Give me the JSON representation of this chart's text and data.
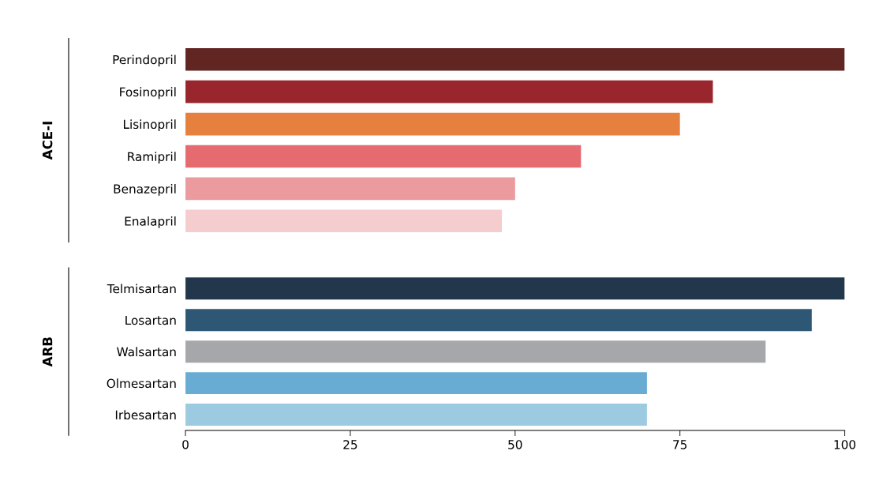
{
  "chart_data": [
    {
      "type": "bar",
      "orientation": "horizontal",
      "ylabel": "ACE-I",
      "categories": [
        "Perindopril",
        "Fosinopril",
        "Lisinopril",
        "Ramipril",
        "Benazepril",
        "Enalapril"
      ],
      "values": [
        100,
        80,
        75,
        60,
        50,
        48
      ],
      "colors": [
        "#612522",
        "#98262c",
        "#e5803f",
        "#e56b70",
        "#eb9a9e",
        "#f5cdcf"
      ],
      "xlim": [
        0,
        100
      ],
      "tick_labels": "y"
    },
    {
      "type": "bar",
      "orientation": "horizontal",
      "ylabel": "ARB",
      "categories": [
        "Telmisartan",
        "Losartan",
        "Walsartan",
        "Olmesartan",
        "Irbesartan"
      ],
      "values": [
        100,
        95,
        88,
        70,
        70
      ],
      "colors": [
        "#22374b",
        "#2d5774",
        "#a5a7aa",
        "#68acd3",
        "#9ccbe1"
      ],
      "xlim": [
        0,
        100
      ],
      "xticks": [
        0,
        25,
        50,
        75,
        100
      ]
    }
  ]
}
